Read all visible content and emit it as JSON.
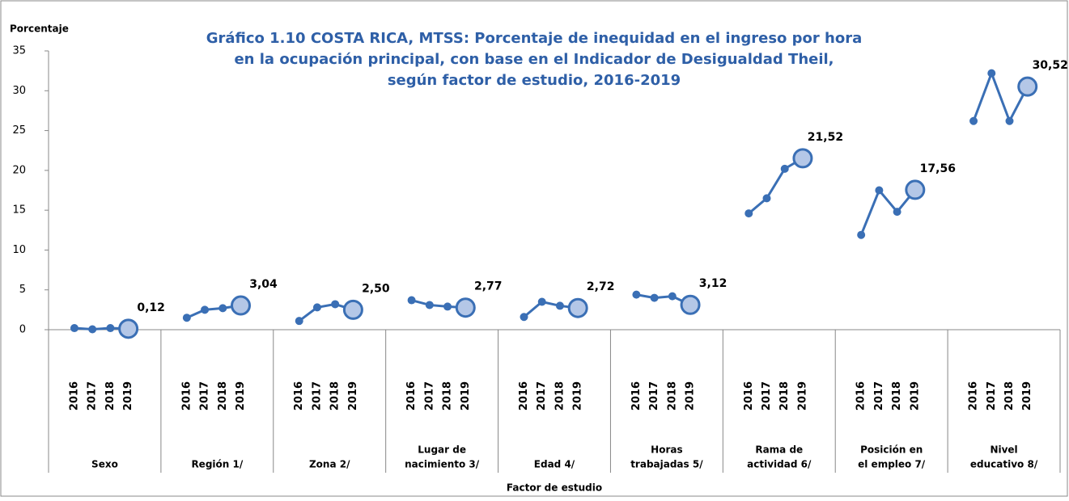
{
  "chart_data": {
    "type": "line",
    "title": [
      "Gráfico 1.10  COSTA RICA, MTSS:  Porcentaje de inequidad  en el ingreso por hora",
      "en la ocupación principal,  con base en el Indicador de Desigualdad  Theil,",
      "según factor de estudio,  2016-2019"
    ],
    "y_label": "Porcentaje",
    "x_label": "Factor de estudio",
    "categories": [
      "2016",
      "2017",
      "2018",
      "2019"
    ],
    "color": "#3a6fb5",
    "highlight_color": "#b4c7e7",
    "ylim": [
      0,
      35
    ],
    "yticks": [
      0,
      5,
      10,
      15,
      20,
      25,
      30,
      35
    ],
    "groups": [
      {
        "name": [
          "Sexo"
        ],
        "values": [
          0.2,
          0.05,
          0.2,
          0.12
        ],
        "value_labels": [
          null,
          null,
          null,
          "0,12"
        ]
      },
      {
        "name": [
          "Región 1/"
        ],
        "values": [
          1.5,
          2.5,
          2.7,
          3.04
        ],
        "value_labels": [
          null,
          null,
          null,
          "3,04"
        ]
      },
      {
        "name": [
          "Zona 2/"
        ],
        "values": [
          1.1,
          2.8,
          3.2,
          2.5
        ],
        "value_labels": [
          null,
          null,
          null,
          "2,50"
        ]
      },
      {
        "name": [
          "Lugar de",
          "nacimiento 3/"
        ],
        "values": [
          3.7,
          3.1,
          2.9,
          2.77
        ],
        "value_labels": [
          null,
          null,
          null,
          "2,77"
        ]
      },
      {
        "name": [
          "Edad 4/"
        ],
        "values": [
          1.6,
          3.5,
          3.0,
          2.72
        ],
        "value_labels": [
          null,
          null,
          null,
          "2,72"
        ]
      },
      {
        "name": [
          "Horas",
          "trabajadas 5/"
        ],
        "values": [
          4.4,
          4.0,
          4.2,
          3.12
        ],
        "value_labels": [
          null,
          null,
          null,
          "3,12"
        ]
      },
      {
        "name": [
          "Rama de",
          "actividad 6/"
        ],
        "values": [
          14.6,
          16.5,
          20.2,
          21.52
        ],
        "value_labels": [
          null,
          null,
          null,
          "21,52"
        ]
      },
      {
        "name": [
          "Posición en",
          "el empleo 7/"
        ],
        "values": [
          11.9,
          17.5,
          14.8,
          17.56
        ],
        "value_labels": [
          null,
          null,
          null,
          "17,56"
        ]
      },
      {
        "name": [
          "Nivel",
          "educativo 8/"
        ],
        "values": [
          26.2,
          32.2,
          26.2,
          30.52
        ],
        "value_labels": [
          null,
          null,
          null,
          "30,52"
        ]
      }
    ]
  }
}
